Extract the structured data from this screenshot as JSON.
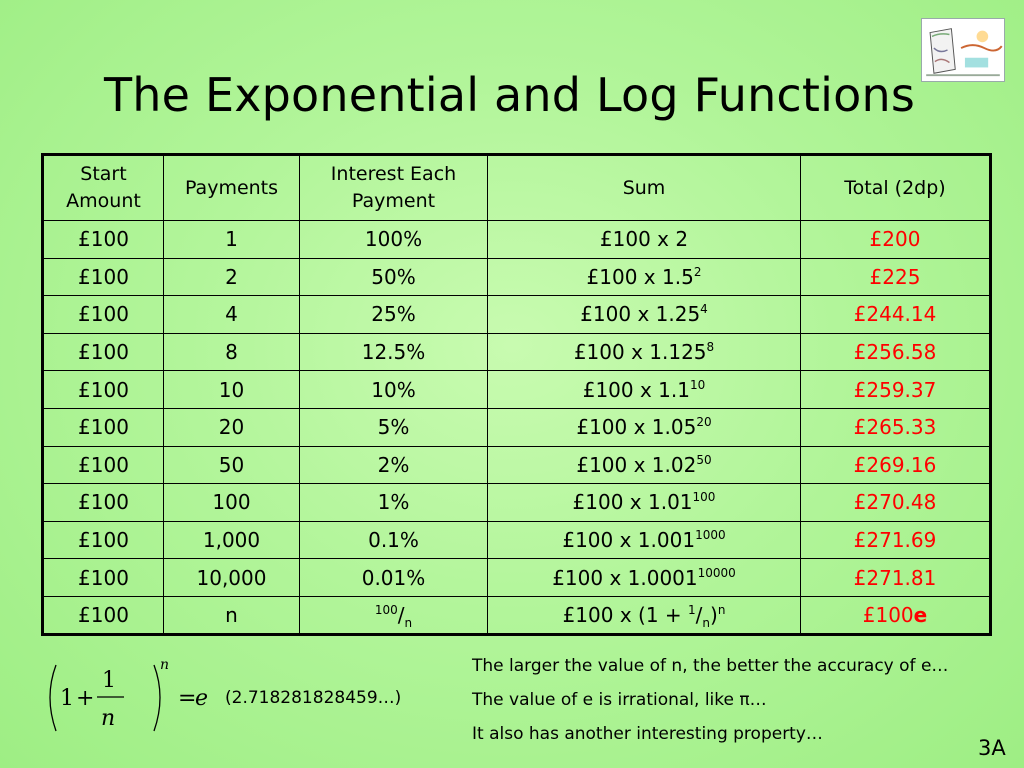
{
  "title": "The Exponential and Log Functions",
  "table": {
    "headers": {
      "start": [
        "Start",
        "Amount"
      ],
      "payments": "Payments",
      "interest": [
        "Interest Each",
        "Payment"
      ],
      "sum": "Sum",
      "total": "Total (2dp)"
    },
    "rows": [
      {
        "start": "£100",
        "payments": "1",
        "interest": "100%",
        "sum_base": "£100 x 2",
        "sum_exp": "",
        "total": "£200"
      },
      {
        "start": "£100",
        "payments": "2",
        "interest": "50%",
        "sum_base": "£100 x 1.5",
        "sum_exp": "2",
        "total": "£225"
      },
      {
        "start": "£100",
        "payments": "4",
        "interest": "25%",
        "sum_base": "£100 x 1.25",
        "sum_exp": "4",
        "total": "£244.14"
      },
      {
        "start": "£100",
        "payments": "8",
        "interest": "12.5%",
        "sum_base": "£100 x 1.125",
        "sum_exp": "8",
        "total": "£256.58"
      },
      {
        "start": "£100",
        "payments": "10",
        "interest": "10%",
        "sum_base": "£100 x 1.1",
        "sum_exp": "10",
        "total": "£259.37"
      },
      {
        "start": "£100",
        "payments": "20",
        "interest": "5%",
        "sum_base": "£100 x 1.05",
        "sum_exp": "20",
        "total": "£265.33"
      },
      {
        "start": "£100",
        "payments": "50",
        "interest": "2%",
        "sum_base": "£100 x 1.02",
        "sum_exp": "50",
        "total": "£269.16"
      },
      {
        "start": "£100",
        "payments": "100",
        "interest": "1%",
        "sum_base": "£100 x 1.01",
        "sum_exp": "100",
        "total": "£270.48"
      },
      {
        "start": "£100",
        "payments": "1,000",
        "interest": "0.1%",
        "sum_base": "£100 x 1.001",
        "sum_exp": "1000",
        "total": "£271.69"
      },
      {
        "start": "£100",
        "payments": "10,000",
        "interest": "0.01%",
        "sum_base": "£100 x 1.0001",
        "sum_exp": "10000",
        "total": "£271.81"
      }
    ],
    "last_row": {
      "start": "£100",
      "payments": "n",
      "interest_sup": "100",
      "interest_slash": "/",
      "interest_sub": "n",
      "sum_prefix": "£100 x (1 + ",
      "sum_sup": "1",
      "sum_slash": "/",
      "sum_sub": "n",
      "sum_close": ")",
      "sum_exp": "n",
      "total_prefix": "£100",
      "total_e": "e"
    }
  },
  "formula": {
    "one": "1",
    "plus": "+",
    "num": "1",
    "den": "n",
    "exp": "n",
    "equals": "=",
    "e": "e"
  },
  "e_value": "(2.718281828459…)",
  "notes": [
    "The larger the value of n, the better the accuracy of e…",
    "The value of e is irrational, like π…",
    "It also has another interesting property…"
  ],
  "slide_number": "3A",
  "colors": {
    "total_text": "#ff0000",
    "background": "#b2f59a"
  },
  "logo_icon": "log-pi-e-logo-icon"
}
